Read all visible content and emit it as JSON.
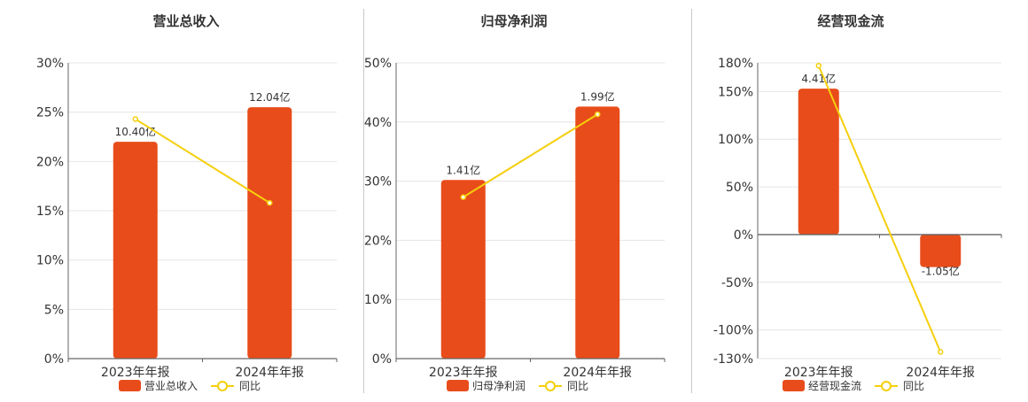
{
  "chart_data": [
    {
      "type": "bar",
      "title": "营业总收入",
      "categories": [
        "2023年年报",
        "2024年年报"
      ],
      "bar_values_pct": [
        22,
        25.5
      ],
      "bar_labels": [
        "10.40亿",
        "12.04亿"
      ],
      "line_values_pct": [
        24.3,
        15.8
      ],
      "yticks": [
        "0%",
        "5%",
        "10%",
        "15%",
        "20%",
        "25%",
        "30%"
      ],
      "ylim": [
        0,
        30
      ],
      "legend": [
        "营业总收入",
        "同比"
      ],
      "legend_position": "bottom",
      "grid": true
    },
    {
      "type": "bar",
      "title": "归母净利润",
      "categories": [
        "2023年年报",
        "2024年年报"
      ],
      "bar_values_pct": [
        30.2,
        42.6
      ],
      "bar_labels": [
        "1.41亿",
        "1.99亿"
      ],
      "line_values_pct": [
        27.3,
        41.3
      ],
      "yticks": [
        "0%",
        "10%",
        "20%",
        "30%",
        "40%",
        "50%"
      ],
      "ylim": [
        0,
        50
      ],
      "legend": [
        "归母净利润",
        "同比"
      ],
      "legend_position": "bottom",
      "grid": true
    },
    {
      "type": "bar",
      "title": "经营现金流",
      "categories": [
        "2023年年报",
        "2024年年报"
      ],
      "bar_values_pct": [
        153,
        -34
      ],
      "bar_labels": [
        "4.41亿",
        "-1.05亿"
      ],
      "line_values_pct": [
        177,
        -123
      ],
      "yticks": [
        "-130%",
        "-100%",
        "-50%",
        "0%",
        "50%",
        "100%",
        "150%",
        "180%"
      ],
      "ylim": [
        -130,
        180
      ],
      "legend": [
        "经营现金流",
        "同比"
      ],
      "legend_position": "bottom",
      "grid": true
    }
  ],
  "colors": {
    "bar": "#e84c1a",
    "line": "#f5cf0c",
    "grid": "#e4e4e4",
    "axis": "#666666",
    "text": "#333333"
  }
}
